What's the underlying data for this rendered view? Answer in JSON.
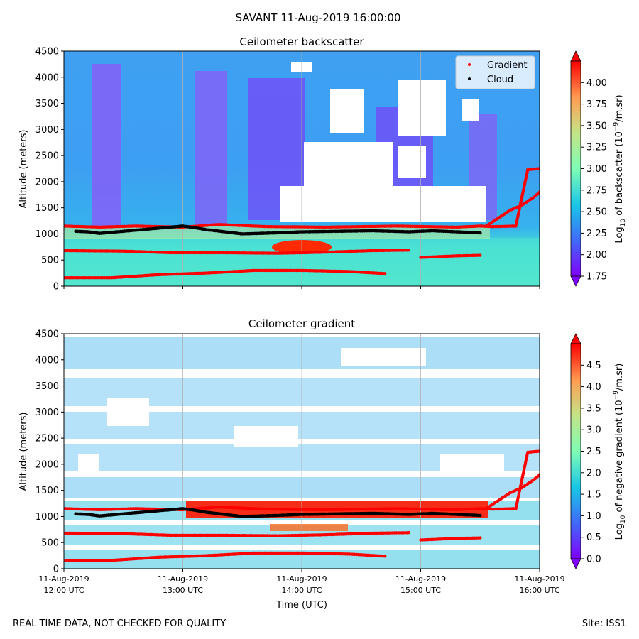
{
  "suptitle": "SAVANT 11-Aug-2019 16:00:00",
  "footer_left": "REAL TIME DATA, NOT CHECKED FOR QUALITY",
  "footer_right": "Site: ISS1",
  "colors": {
    "gradient_marker": "#ff0000",
    "cloud_marker": "#000000",
    "no_data": "#ffffff"
  },
  "chart_data": [
    {
      "type": "heatmap",
      "title": "Ceilometer backscatter",
      "xlabel": "",
      "ylabel": "Altitude (meters)",
      "ylim": [
        0,
        4500
      ],
      "yticks": [
        "0",
        "500",
        "1000",
        "1500",
        "2000",
        "2500",
        "3000",
        "3500",
        "4000",
        "4500"
      ],
      "xlim_hours": [
        12,
        16
      ],
      "xticks": [],
      "grid": "vertical",
      "colorbar": {
        "label": "Log10 of backscatter (10^-9/m.sr)",
        "range": [
          1.75,
          4.25
        ],
        "ticks": [
          "1.75",
          "2.00",
          "2.25",
          "2.50",
          "2.75",
          "3.00",
          "3.25",
          "3.50",
          "3.75",
          "4.00"
        ],
        "extend": "both"
      },
      "legend": {
        "position": "top-right",
        "entries": [
          "Gradient",
          "Cloud"
        ]
      },
      "series": [
        {
          "name": "Gradient",
          "color": "#ff0000",
          "x": [
            12.0,
            12.3,
            12.6,
            13.0,
            13.3,
            13.7,
            14.2,
            14.8,
            15.3,
            15.5,
            15.6,
            15.8,
            15.9,
            16.0
          ],
          "y": [
            1150,
            1130,
            1150,
            1130,
            1180,
            1140,
            1130,
            1150,
            1130,
            1150,
            1140,
            1150,
            2230,
            2250
          ]
        },
        {
          "name": "Gradient",
          "color": "#ff0000",
          "x": [
            12.0,
            12.5,
            12.9,
            13.3,
            13.8,
            14.2,
            14.6,
            14.9
          ],
          "y": [
            680,
            670,
            640,
            640,
            630,
            650,
            680,
            690
          ]
        },
        {
          "name": "Gradient",
          "color": "#ff0000",
          "x": [
            12.0,
            12.4,
            12.8,
            13.2,
            13.6,
            14.0,
            14.4,
            14.7
          ],
          "y": [
            160,
            160,
            220,
            250,
            300,
            300,
            280,
            240
          ]
        },
        {
          "name": "Gradient",
          "color": "#ff0000",
          "x": [
            15.0,
            15.3,
            15.5
          ],
          "y": [
            550,
            580,
            590
          ]
        },
        {
          "name": "Gradient",
          "color": "#ff0000",
          "x": [
            15.55,
            15.65,
            15.75,
            15.85,
            15.95,
            16.0
          ],
          "y": [
            1150,
            1300,
            1450,
            1550,
            1700,
            1800
          ]
        },
        {
          "name": "Cloud",
          "color": "#000000",
          "x": [
            12.1,
            12.2,
            12.3,
            13.0,
            13.1,
            13.2,
            13.5,
            13.8,
            14.0,
            14.3,
            14.6,
            14.9,
            15.1,
            15.3,
            15.5
          ],
          "y": [
            1050,
            1040,
            1010,
            1150,
            1120,
            1080,
            1000,
            1020,
            1040,
            1050,
            1060,
            1040,
            1060,
            1040,
            1020
          ]
        }
      ]
    },
    {
      "type": "heatmap",
      "title": "Ceilometer gradient",
      "xlabel": "Time (UTC)",
      "ylabel": "Altitude (meters)",
      "ylim": [
        0,
        4500
      ],
      "yticks": [
        "0",
        "500",
        "1000",
        "1500",
        "2000",
        "2500",
        "3000",
        "3500",
        "4000",
        "4500"
      ],
      "xlim_hours": [
        12,
        16
      ],
      "xticks": [
        {
          "hour": 12,
          "line1": "11-Aug-2019",
          "line2": "12:00 UTC"
        },
        {
          "hour": 13,
          "line1": "11-Aug-2019",
          "line2": "13:00 UTC"
        },
        {
          "hour": 14,
          "line1": "11-Aug-2019",
          "line2": "14:00 UTC"
        },
        {
          "hour": 15,
          "line1": "11-Aug-2019",
          "line2": "15:00 UTC"
        },
        {
          "hour": 16,
          "line1": "11-Aug-2019",
          "line2": "16:00 UTC"
        }
      ],
      "grid": "vertical",
      "colorbar": {
        "label": "Log10 of negative gradient (10^-9/m.sr)",
        "range": [
          0.0,
          5.0
        ],
        "ticks": [
          "0.0",
          "0.5",
          "1.0",
          "1.5",
          "2.0",
          "2.5",
          "3.0",
          "3.5",
          "4.0",
          "4.5"
        ],
        "extend": "both"
      },
      "series": [
        {
          "name": "Gradient",
          "color": "#ff0000",
          "x": [
            12.0,
            12.3,
            12.6,
            13.0,
            13.3,
            13.7,
            14.2,
            14.8,
            15.3,
            15.5,
            15.6,
            15.8,
            15.9,
            16.0
          ],
          "y": [
            1150,
            1130,
            1150,
            1130,
            1180,
            1140,
            1130,
            1150,
            1130,
            1150,
            1140,
            1150,
            2230,
            2250
          ]
        },
        {
          "name": "Gradient",
          "color": "#ff0000",
          "x": [
            12.0,
            12.5,
            12.9,
            13.3,
            13.8,
            14.2,
            14.6,
            14.9
          ],
          "y": [
            680,
            670,
            640,
            640,
            630,
            650,
            680,
            690
          ]
        },
        {
          "name": "Gradient",
          "color": "#ff0000",
          "x": [
            12.0,
            12.4,
            12.8,
            13.2,
            13.6,
            14.0,
            14.4,
            14.7
          ],
          "y": [
            160,
            160,
            220,
            250,
            300,
            300,
            280,
            240
          ]
        },
        {
          "name": "Gradient",
          "color": "#ff0000",
          "x": [
            15.0,
            15.3,
            15.5
          ],
          "y": [
            550,
            580,
            590
          ]
        },
        {
          "name": "Gradient",
          "color": "#ff0000",
          "x": [
            15.55,
            15.65,
            15.75,
            15.85,
            15.95,
            16.0
          ],
          "y": [
            1150,
            1300,
            1450,
            1550,
            1700,
            1800
          ]
        },
        {
          "name": "Cloud",
          "color": "#000000",
          "x": [
            12.1,
            12.2,
            12.3,
            13.0,
            13.1,
            13.2,
            13.5,
            13.8,
            14.0,
            14.3,
            14.6,
            14.9,
            15.1,
            15.3,
            15.5
          ],
          "y": [
            1050,
            1040,
            1010,
            1150,
            1120,
            1080,
            1000,
            1020,
            1040,
            1050,
            1060,
            1040,
            1060,
            1040,
            1020
          ]
        }
      ]
    }
  ]
}
